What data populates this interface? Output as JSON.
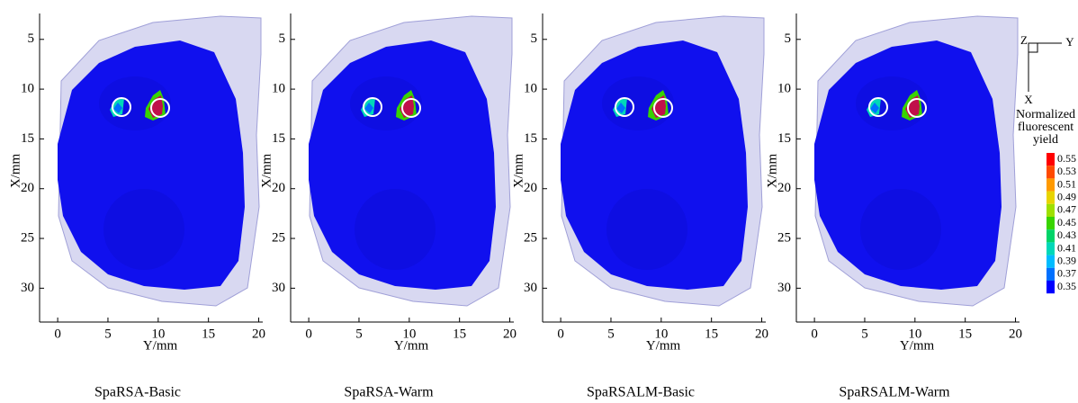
{
  "chart_data": [
    {
      "type": "image",
      "title": "SpaRSA-Basic",
      "xlabel": "Y/mm",
      "ylabel": "X/mm",
      "xlim": [
        -1.8,
        20.4
      ],
      "ylim": [
        33.4,
        2.4
      ],
      "xticks": [
        0,
        5,
        10,
        15,
        20
      ],
      "yticks": [
        5,
        10,
        15,
        20,
        25,
        30
      ]
    },
    {
      "type": "image",
      "title": "SpaRSA-Warm",
      "xlabel": "Y/mm",
      "ylabel": "X/mm",
      "xlim": [
        -1.8,
        20.4
      ],
      "ylim": [
        33.4,
        2.4
      ],
      "xticks": [
        0,
        5,
        10,
        15,
        20
      ],
      "yticks": [
        5,
        10,
        15,
        20,
        25,
        30
      ]
    },
    {
      "type": "image",
      "title": "SpaRSALM-Basic",
      "xlabel": "Y/mm",
      "ylabel": "X/mm",
      "xlim": [
        -1.8,
        20.4
      ],
      "ylim": [
        33.4,
        2.4
      ],
      "xticks": [
        0,
        5,
        10,
        15,
        20
      ],
      "yticks": [
        5,
        10,
        15,
        20,
        25,
        30
      ]
    },
    {
      "type": "image",
      "title": "SpaRSALM-Warm",
      "xlabel": "Y/mm",
      "ylabel": "X/mm",
      "xlim": [
        -1.8,
        20.4
      ],
      "ylim": [
        33.4,
        2.4
      ],
      "xticks": [
        0,
        5,
        10,
        15,
        20
      ],
      "yticks": [
        5,
        10,
        15,
        20,
        25,
        30
      ]
    }
  ],
  "colorbar": {
    "title_lines": [
      "Normalized",
      "fluorescent",
      "yield"
    ],
    "ticks": [
      0.55,
      0.53,
      0.51,
      0.49,
      0.47,
      0.45,
      0.43,
      0.41,
      0.39,
      0.37,
      0.35
    ],
    "colors": [
      "#ff0000",
      "#ff4a00",
      "#ff9a00",
      "#e8d400",
      "#9ee000",
      "#38d400",
      "#00d468",
      "#00d8b8",
      "#00bcff",
      "#0070ff",
      "#0000ff"
    ]
  },
  "orientation": {
    "z": "Z",
    "y": "Y",
    "x": "X"
  }
}
